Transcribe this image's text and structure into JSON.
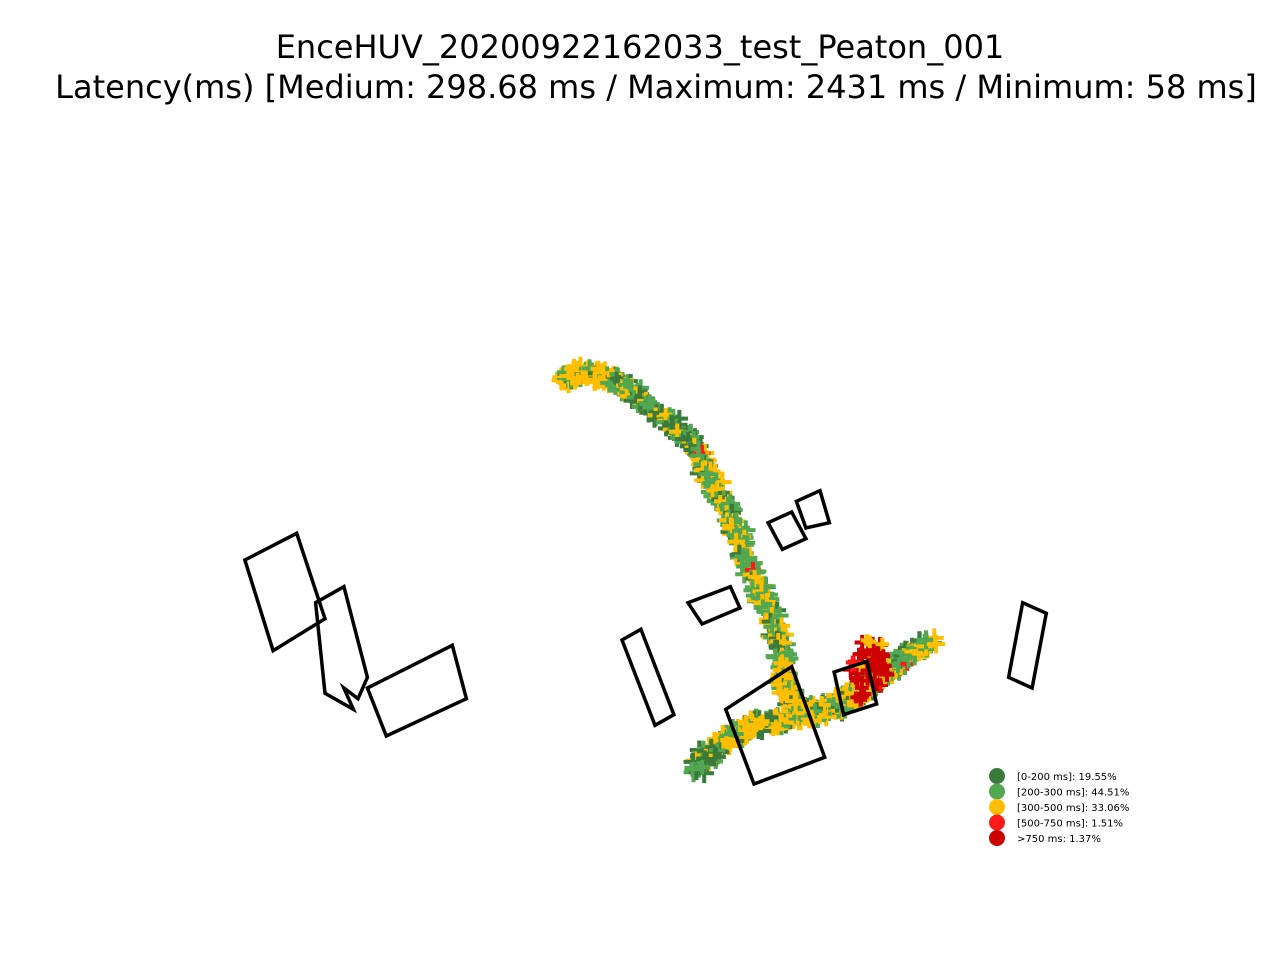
{
  "chart_data": {
    "type": "scatter",
    "title": "EnceHUV_20200922162033_test_Peaton_001",
    "subtitle": "Latency(ms) [Medium: 298.68 ms / Maximum: 2431 ms / Minimum: 58 ms]",
    "xlabel": "",
    "ylabel": "",
    "grid": false,
    "axes_visible": false,
    "legend_position": "lower-right",
    "categories": [
      {
        "label": "[0-200 ms]: 19.55%",
        "range": "0-200",
        "percent": 19.55,
        "color": "#3a7a3a"
      },
      {
        "label": "[200-300 ms]: 44.51%",
        "range": "200-300",
        "percent": 44.51,
        "color": "#52a852"
      },
      {
        "label": "[300-500 ms]: 33.06%",
        "range": "300-500",
        "percent": 33.06,
        "color": "#ffbf00"
      },
      {
        "label": "[500-750 ms]: 1.51%",
        "range": "500-750",
        "percent": 1.51,
        "color": "#ff1a1a"
      },
      {
        "label": ">750 ms: 1.37%",
        "range": ">750",
        "percent": 1.37,
        "color": "#cc0000"
      }
    ],
    "statistics": {
      "medium_ms": 298.68,
      "maximum_ms": 2431,
      "minimum_ms": 58
    },
    "trajectory_path": [
      [
        -35.0,
        34.0
      ],
      [
        -32.0,
        35.0
      ],
      [
        -28.0,
        35.0
      ],
      [
        -24.0,
        34.0
      ],
      [
        -19.0,
        31.0
      ],
      [
        -15.0,
        28.0
      ],
      [
        -10.0,
        24.5
      ],
      [
        -6.0,
        20.0
      ],
      [
        -3.0,
        15.0
      ],
      [
        0.0,
        10.0
      ],
      [
        2.5,
        5.0
      ],
      [
        4.5,
        0.0
      ],
      [
        7.0,
        -5.0
      ],
      [
        9.5,
        -10.0
      ],
      [
        11.5,
        -15.0
      ],
      [
        12.5,
        -20.0
      ],
      [
        12.5,
        -24.0
      ],
      [
        14.0,
        -27.0
      ],
      [
        17.0,
        -28.5
      ],
      [
        21.0,
        -28.0
      ],
      [
        25.0,
        -27.0
      ],
      [
        28.0,
        -25.0
      ],
      [
        31.0,
        -23.0
      ],
      [
        34.0,
        -21.0
      ],
      [
        37.0,
        -19.0
      ],
      [
        40.0,
        -17.0
      ],
      [
        44.0,
        -15.5
      ]
    ],
    "return_path": [
      [
        28.0,
        -25.0
      ],
      [
        24.0,
        -27.0
      ],
      [
        18.0,
        -29.0
      ],
      [
        12.0,
        -30.0
      ],
      [
        6.0,
        -31.0
      ],
      [
        1.0,
        -33.0
      ],
      [
        -3.0,
        -36.0
      ],
      [
        -6.0,
        -39.0
      ]
    ],
    "hotspot_center": [
      30.5,
      -19.5
    ],
    "buildings": [
      [
        [
          -102,
          0
        ],
        [
          -91,
          5
        ],
        [
          -85,
          -11
        ],
        [
          -96,
          -17
        ]
      ],
      [
        [
          -87,
          -8
        ],
        [
          -81,
          -5
        ],
        [
          -76,
          -22
        ],
        [
          -78,
          -26
        ],
        [
          -81,
          -24
        ],
        [
          -79,
          -28
        ],
        [
          -85,
          -25
        ]
      ],
      [
        [
          -76,
          -24
        ],
        [
          -58,
          -16
        ],
        [
          -55,
          -26
        ],
        [
          -72,
          -33
        ]
      ],
      [
        [
          -22,
          -15
        ],
        [
          -18,
          -13
        ],
        [
          -11,
          -29
        ],
        [
          -15,
          -31
        ]
      ],
      [
        [
          -8,
          -8
        ],
        [
          1,
          -5
        ],
        [
          3,
          -9
        ],
        [
          -5,
          -12
        ]
      ],
      [
        [
          9,
          7
        ],
        [
          14,
          9
        ],
        [
          17,
          4
        ],
        [
          12,
          2
        ]
      ],
      [
        [
          15,
          11
        ],
        [
          20,
          13
        ],
        [
          22,
          7
        ],
        [
          17,
          6
        ]
      ],
      [
        [
          63,
          -8
        ],
        [
          68,
          -10
        ],
        [
          65,
          -24
        ],
        [
          60,
          -22
        ]
      ],
      [
        [
          0,
          -28
        ],
        [
          14,
          -20
        ],
        [
          21,
          -37
        ],
        [
          6,
          -42
        ]
      ],
      [
        [
          23,
          -21
        ],
        [
          30,
          -19
        ],
        [
          32,
          -27
        ],
        [
          25,
          -29
        ]
      ]
    ],
    "xlim": [
      -120,
      90
    ],
    "ylim": [
      -60,
      75
    ]
  }
}
